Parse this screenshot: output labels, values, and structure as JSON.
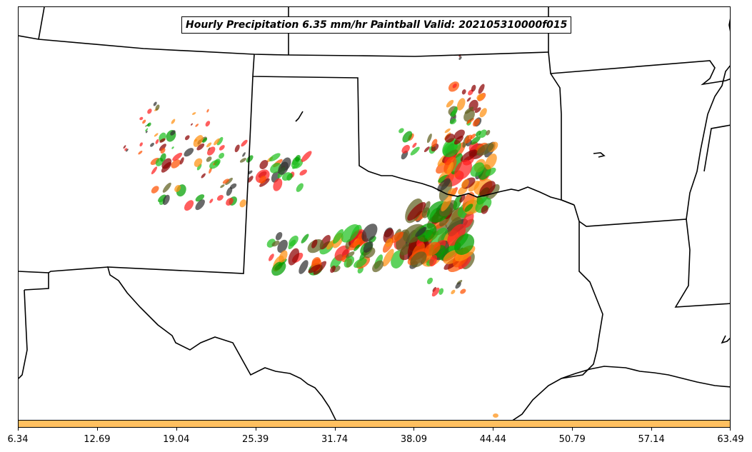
{
  "title": "Hourly Precipitation 6.35 mm/hr Paintball Valid: 202105310000f015",
  "colors": {
    "member_colors": [
      "#ff2020",
      "#20c020",
      "#606020",
      "#ff9010",
      "#8b0000",
      "#303030",
      "#00a000",
      "#ff5000"
    ],
    "colorbar_fill": "#ffc060",
    "boundary": "#000000"
  },
  "colorbar": {
    "tick_labels": [
      "6.34",
      "12.69",
      "19.04",
      "25.39",
      "31.74",
      "38.09",
      "44.44",
      "50.79",
      "57.14",
      "63.49"
    ]
  }
}
